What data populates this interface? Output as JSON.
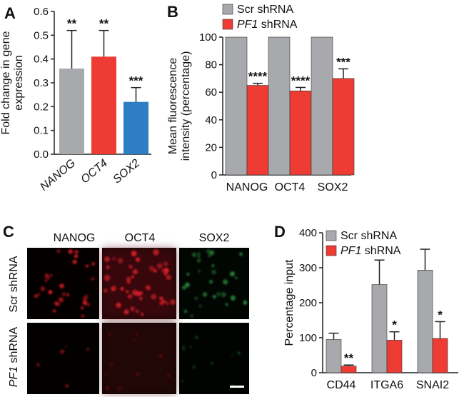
{
  "colors": {
    "gray": "#a7a9ac",
    "red": "#ee3b33",
    "blue": "#2e7ec3",
    "axis": "#222222",
    "text": "#111111",
    "scale_bar": "#ffffff"
  },
  "panels": {
    "a": "A",
    "b": "B",
    "c": "C",
    "d": "D"
  },
  "chart_data": [
    {
      "panel": "A",
      "type": "bar",
      "ylabel": "Fold change in gene expression",
      "ylabel_lines": [
        "Fold change in gene",
        "expression"
      ],
      "ylim": [
        0,
        0.6
      ],
      "yticks": [
        "0.0",
        "0.1",
        "0.2",
        "0.3",
        "0.4",
        "0.5",
        "0.6"
      ],
      "categories": [
        "NANOG",
        "OCT4",
        "SOX2"
      ],
      "values": [
        0.36,
        0.41,
        0.22
      ],
      "errors": [
        0.16,
        0.11,
        0.06
      ],
      "bar_colors": [
        "gray",
        "red",
        "blue"
      ],
      "significance": [
        "**",
        "**",
        "***"
      ]
    },
    {
      "panel": "B",
      "type": "bar",
      "ylabel": "Mean fluorescence intensity (percentage)",
      "ylabel_lines": [
        "Mean fluorescence",
        "intensity (percentage)"
      ],
      "ylim": [
        0,
        100
      ],
      "yticks": [
        "0",
        "20",
        "40",
        "60",
        "80",
        "100"
      ],
      "categories": [
        "NANOG",
        "OCT4",
        "SOX2"
      ],
      "legend": {
        "items": [
          {
            "name": "Scr shRNA",
            "color": "gray"
          },
          {
            "pre": "",
            "italic": "PF1",
            "post": " shRNA",
            "color": "red"
          }
        ],
        "position": "top"
      },
      "series": [
        {
          "name": "Scr shRNA",
          "color": "gray",
          "values": [
            100,
            100,
            100
          ],
          "errors": [
            0,
            0,
            0
          ],
          "significance": [
            "",
            "",
            ""
          ]
        },
        {
          "name": "PF1 shRNA",
          "color": "red",
          "values": [
            65,
            61,
            70
          ],
          "errors": [
            1.5,
            2.5,
            7
          ],
          "significance": [
            "****",
            "****",
            "***"
          ]
        }
      ]
    },
    {
      "panel": "D",
      "type": "bar",
      "ylabel": "Percentage input",
      "ylim": [
        0,
        400
      ],
      "yticks": [
        "0",
        "100",
        "200",
        "300",
        "400"
      ],
      "categories": [
        "CD44",
        "ITGA6",
        "SNAI2"
      ],
      "legend": {
        "items": [
          {
            "name": "Scr shRNA",
            "color": "gray"
          },
          {
            "pre": "",
            "italic": "PF1",
            "post": " shRNA",
            "color": "red"
          }
        ],
        "position": "top-left"
      },
      "series": [
        {
          "name": "Scr shRNA",
          "color": "gray",
          "values": [
            95,
            252,
            293
          ],
          "errors": [
            18,
            70,
            60
          ],
          "significance": [
            "",
            "",
            ""
          ]
        },
        {
          "name": "PF1 shRNA",
          "color": "red",
          "values": [
            19,
            93,
            98
          ],
          "errors": [
            3,
            24,
            48
          ],
          "significance": [
            "**",
            "*",
            "*"
          ]
        }
      ]
    }
  ],
  "micrograph": {
    "panel": "C",
    "columns": [
      "NANOG",
      "OCT4",
      "SOX2"
    ],
    "rows": [
      {
        "pre": "Scr",
        "italic": "",
        "post": " shRNA"
      },
      {
        "pre": "",
        "italic": "PF1",
        "post": " shRNA"
      }
    ]
  }
}
